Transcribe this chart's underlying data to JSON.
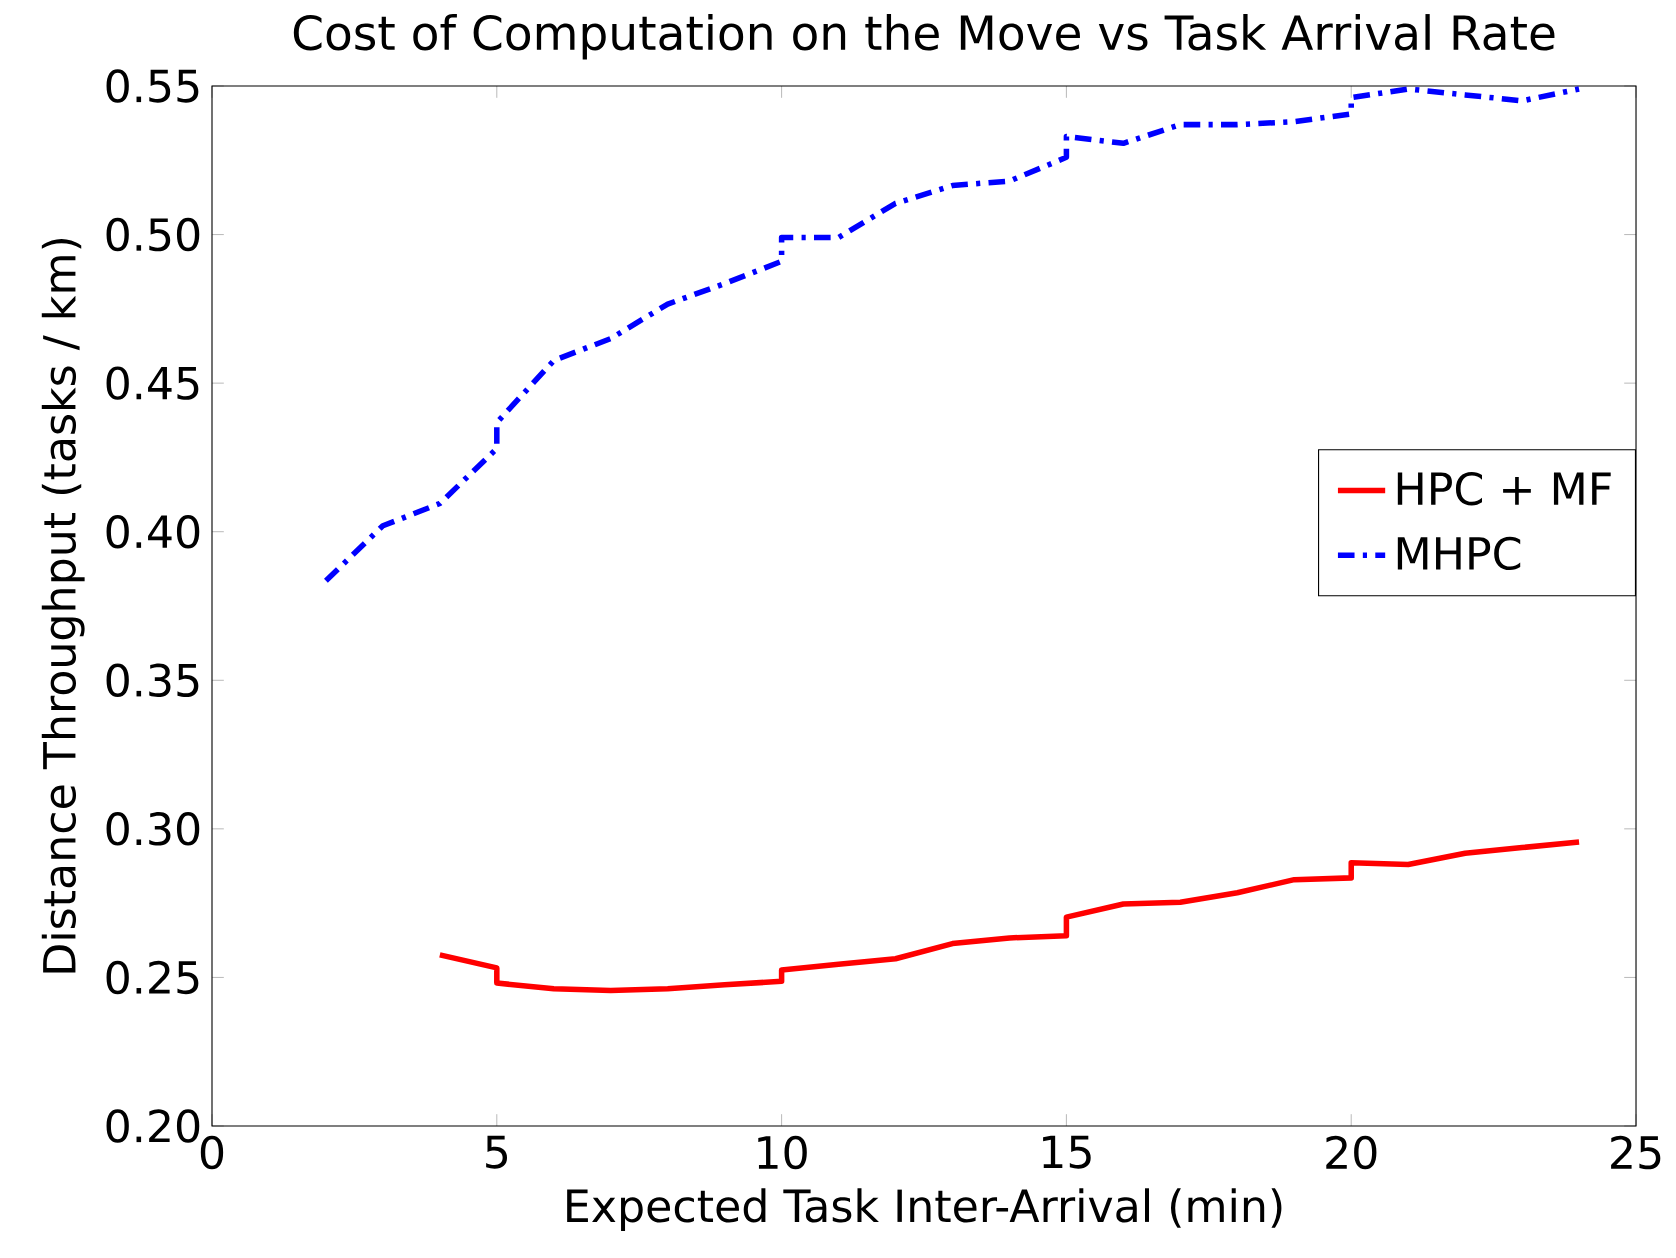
{
  "chart_data": {
    "type": "line",
    "title": "Cost of Computation on the Move vs Task Arrival Rate",
    "xlabel": "Expected Task Inter-Arrival (min)",
    "ylabel": "Distance Throughput (tasks / km)",
    "xlim": [
      0,
      25
    ],
    "xticks": [
      0,
      5,
      10,
      15,
      20,
      25
    ],
    "ylim": [
      0.2,
      0.55
    ],
    "yticks": [
      {
        "value": 0.2,
        "label": "0.20"
      },
      {
        "value": 0.25,
        "label": "0.25"
      },
      {
        "value": 0.3,
        "label": "0.30"
      },
      {
        "value": 0.35,
        "label": "0.35"
      },
      {
        "value": 0.4,
        "label": "0.40"
      },
      {
        "value": 0.45,
        "label": "0.45"
      },
      {
        "value": 0.5,
        "label": "0.50"
      },
      {
        "value": 0.55,
        "label": "0.55"
      }
    ],
    "legend": "right",
    "series": [
      {
        "name": "HPC + MF",
        "color": "#ff0000",
        "line_style": "solid",
        "x": [
          4,
          5,
          5,
          6,
          7,
          8,
          9,
          10,
          10,
          11,
          12,
          13,
          14,
          15,
          15,
          16,
          17,
          18,
          19,
          20,
          20,
          21,
          22,
          23,
          24
        ],
        "values": [
          0.2576,
          0.2532,
          0.2481,
          0.2462,
          0.2456,
          0.2462,
          0.2475,
          0.2487,
          0.2525,
          0.2544,
          0.2563,
          0.2614,
          0.2633,
          0.264,
          0.2703,
          0.2747,
          0.2753,
          0.2785,
          0.2829,
          0.2835,
          0.2886,
          0.288,
          0.2918,
          0.2937,
          0.2956
        ]
      },
      {
        "name": "MHPC",
        "color": "#0000ff",
        "line_style": "dashdot",
        "x": [
          2,
          3,
          4,
          5,
          5,
          6,
          7,
          8,
          9,
          10,
          10,
          11,
          12,
          13,
          14,
          15,
          15,
          16,
          17,
          18,
          19,
          20,
          20,
          21,
          22,
          23,
          24
        ],
        "values": [
          0.3835,
          0.402,
          0.4095,
          0.428,
          0.4367,
          0.4576,
          0.465,
          0.4766,
          0.4835,
          0.491,
          0.499,
          0.499,
          0.5105,
          0.5165,
          0.518,
          0.526,
          0.533,
          0.5307,
          0.537,
          0.537,
          0.538,
          0.5406,
          0.5461,
          0.549,
          0.547,
          0.545,
          0.549
        ]
      }
    ]
  }
}
